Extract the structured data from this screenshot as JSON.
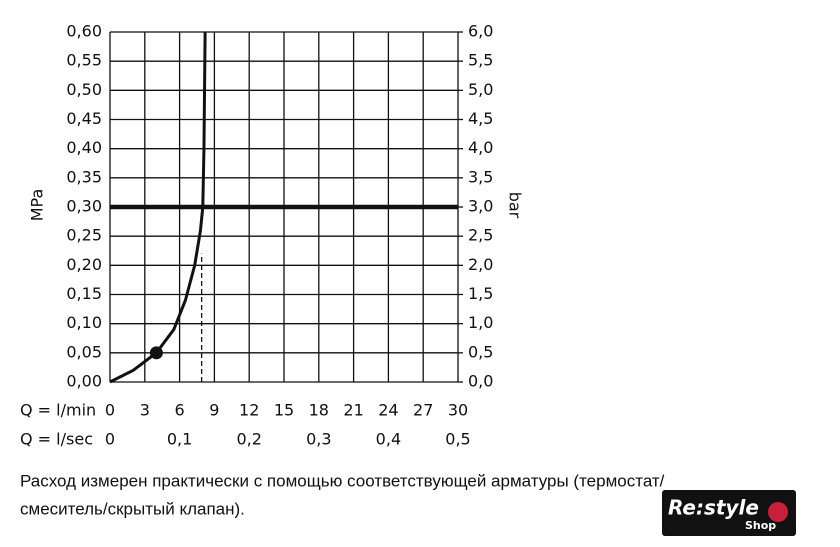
{
  "chart_data": {
    "type": "line",
    "x": [
      0,
      2,
      4,
      5.5,
      6.5,
      7.3,
      7.8,
      8,
      8.1,
      8.2
    ],
    "values": [
      0,
      0.02,
      0.05,
      0.09,
      0.14,
      0.2,
      0.26,
      0.3,
      0.4,
      0.6
    ],
    "color": "#111111",
    "xlim": [
      0,
      30
    ],
    "xticks": [
      0,
      3,
      6,
      9,
      12,
      15,
      18,
      21,
      24,
      27,
      30
    ],
    "x_row_label": "Q = l/min",
    "x2lim": [
      0,
      0.5
    ],
    "x2ticks": [
      0,
      {
        "value": 0.1,
        "label": "0,1"
      },
      {
        "value": 0.2,
        "label": "0,2"
      },
      {
        "value": 0.3,
        "label": "0,3"
      },
      {
        "value": 0.4,
        "label": "0,4"
      },
      {
        "value": 0.5,
        "label": "0,5"
      }
    ],
    "x2_row_label": "Q = l/sec",
    "ylabel": "MPa",
    "ylim": [
      0,
      0.6
    ],
    "yticks": [
      {
        "value": 0,
        "label": "0,00"
      },
      {
        "value": 0.05,
        "label": "0,05"
      },
      {
        "value": 0.1,
        "label": "0,10"
      },
      {
        "value": 0.15,
        "label": "0,15"
      },
      {
        "value": 0.2,
        "label": "0,20"
      },
      {
        "value": 0.25,
        "label": "0,25"
      },
      {
        "value": 0.3,
        "label": "0,30"
      },
      {
        "value": 0.35,
        "label": "0,35"
      },
      {
        "value": 0.4,
        "label": "0,40"
      },
      {
        "value": 0.45,
        "label": "0,45"
      },
      {
        "value": 0.5,
        "label": "0,50"
      },
      {
        "value": 0.55,
        "label": "0,55"
      },
      {
        "value": 0.6,
        "label": "0,60"
      }
    ],
    "y2label": "bar",
    "y2lim": [
      0,
      6
    ],
    "y2ticks": [
      {
        "value": 0,
        "label": "0,0"
      },
      {
        "value": 0.5,
        "label": "0,5"
      },
      {
        "value": 1,
        "label": "1,0"
      },
      {
        "value": 1.5,
        "label": "1,5"
      },
      {
        "value": 2,
        "label": "2,0"
      },
      {
        "value": 2.5,
        "label": "2,5"
      },
      {
        "value": 3,
        "label": "3,0"
      },
      {
        "value": 3.5,
        "label": "3,5"
      },
      {
        "value": 4,
        "label": "4,0"
      },
      {
        "value": 4.5,
        "label": "4,5"
      },
      {
        "value": 5,
        "label": "5,0"
      },
      {
        "value": 5.5,
        "label": "5,5"
      },
      {
        "value": 6,
        "label": "6,0"
      }
    ],
    "hline": 0.3,
    "marker": {
      "x": 4,
      "y": 0.05
    },
    "reference_line": {
      "x": 7.9,
      "y": 0.22
    },
    "grid": true
  },
  "caption": [
    "Расход измерен практически с помощью соответствующей арматуры (термостат/",
    "смеситель/скрытый клапан)."
  ],
  "logo": {
    "name": "Re:style",
    "sub": "Shop"
  }
}
